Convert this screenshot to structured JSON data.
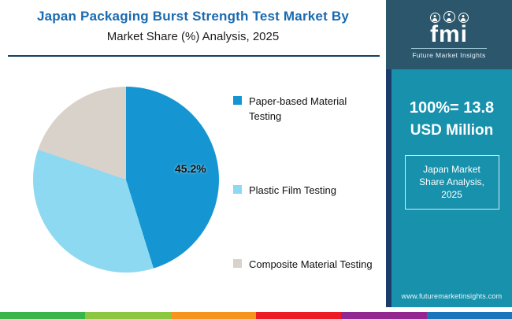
{
  "header": {
    "title_line1": "Japan Packaging Burst Strength Test Market By",
    "title_line2": "Market Share (%) Analysis, 2025"
  },
  "logo": {
    "brand": "fmi",
    "tagline": "Future Market Insights"
  },
  "sidebar": {
    "stat_value": "100%= 13.8",
    "stat_unit": "USD Million",
    "box_label": "Japan Market Share Analysis, 2025",
    "website": "www.futuremarketinsights.com"
  },
  "chart_data": {
    "type": "pie",
    "title": "Japan Packaging Burst Strength Test Market By Market Share (%) Analysis, 2025",
    "categories": [
      "Paper-based Material Testing",
      "Plastic Film Testing",
      "Composite Material Testing"
    ],
    "values": [
      45.2,
      35.0,
      19.8
    ],
    "colors": [
      "#1596d2",
      "#8ed9f2",
      "#d8d2ca"
    ],
    "data_label": "45.2%",
    "labeled_slice": "Paper-based Material Testing",
    "legend_position": "right",
    "start_angle_deg": 0
  },
  "colors": {
    "title_blue": "#1a6ab0",
    "header_rule": "#163f5e",
    "logo_background": "#2b566b",
    "sidebar_teal": "#1791ac",
    "sidebar_accent_navy": "#1d3c6b",
    "bottom_bar_segments": [
      "#39b54a",
      "#8dc63f",
      "#f7941d",
      "#ed1c24",
      "#92278f",
      "#1b75bb"
    ]
  }
}
